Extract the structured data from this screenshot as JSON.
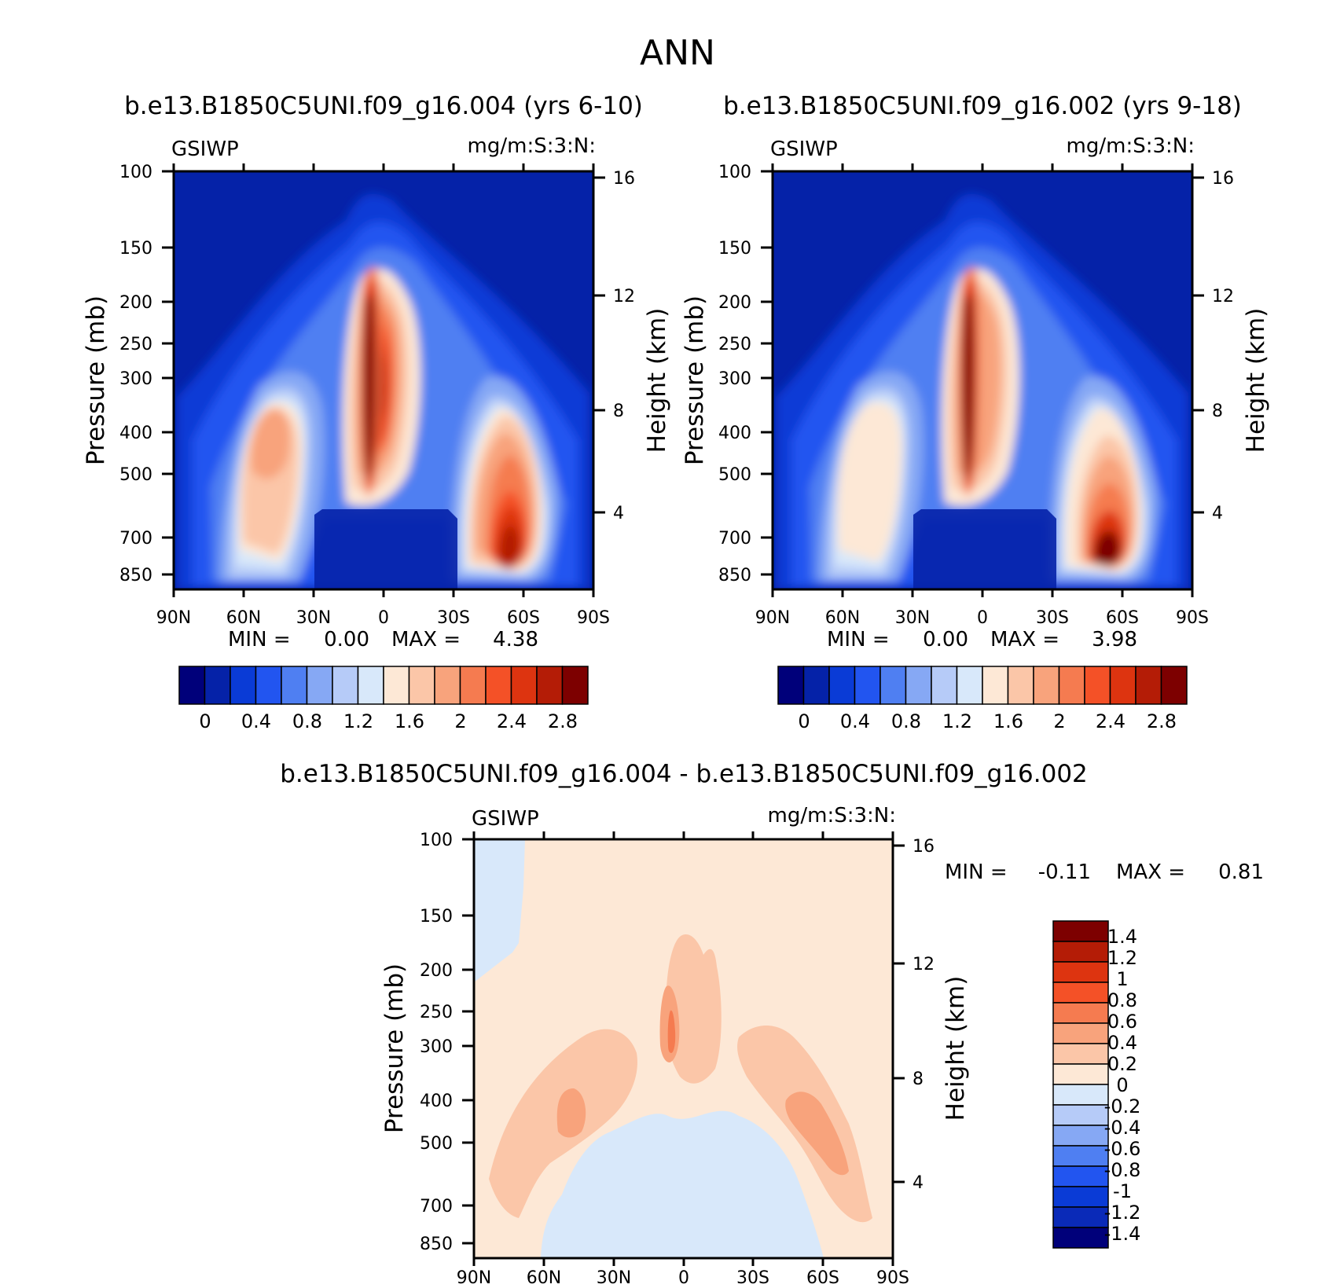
{
  "chart_data": {
    "type": "contour",
    "title": "ANN",
    "panels": [
      {
        "id": "p1",
        "subtitle": "b.e13.B1850C5UNI.f09_g16.004 (yrs 6-10)",
        "variable": "GSIWP",
        "units": "mg/m:S:3:N:",
        "xlabel": "",
        "ylabel": "Pressure (mb)",
        "ylabel_right": "Height (km)",
        "x_ticks": [
          "90N",
          "60N",
          "30N",
          "0",
          "30S",
          "60S",
          "90S"
        ],
        "y_ticks": [
          "100",
          "150",
          "200",
          "250",
          "300",
          "400",
          "500",
          "700",
          "850"
        ],
        "y_ticks_right": [
          "16",
          "12",
          "8",
          "4"
        ],
        "min_label": "MIN =",
        "min_value": "0.00",
        "max_label": "MAX =",
        "max_value": "4.38",
        "colorbar_labels": [
          "0",
          "0.4",
          "0.8",
          "1.2",
          "1.6",
          "2",
          "2.4",
          "2.8"
        ]
      },
      {
        "id": "p2",
        "subtitle": "b.e13.B1850C5UNI.f09_g16.002 (yrs 9-18)",
        "variable": "GSIWP",
        "units": "mg/m:S:3:N:",
        "xlabel": "",
        "ylabel": "Pressure (mb)",
        "ylabel_right": "Height (km)",
        "x_ticks": [
          "90N",
          "60N",
          "30N",
          "0",
          "30S",
          "60S",
          "90S"
        ],
        "y_ticks": [
          "100",
          "150",
          "200",
          "250",
          "300",
          "400",
          "500",
          "700",
          "850"
        ],
        "y_ticks_right": [
          "16",
          "12",
          "8",
          "4"
        ],
        "min_label": "MIN =",
        "min_value": "0.00",
        "max_label": "MAX =",
        "max_value": "3.98",
        "colorbar_labels": [
          "0",
          "0.4",
          "0.8",
          "1.2",
          "1.6",
          "2",
          "2.4",
          "2.8"
        ]
      },
      {
        "id": "p3",
        "subtitle": "b.e13.B1850C5UNI.f09_g16.004 - b.e13.B1850C5UNI.f09_g16.002",
        "variable": "GSIWP",
        "units": "mg/m:S:3:N:",
        "xlabel": "",
        "ylabel": "Pressure (mb)",
        "ylabel_right": "Height (km)",
        "x_ticks": [
          "90N",
          "60N",
          "30N",
          "0",
          "30S",
          "60S",
          "90S"
        ],
        "y_ticks": [
          "100",
          "150",
          "200",
          "250",
          "300",
          "400",
          "500",
          "700",
          "850"
        ],
        "y_ticks_right": [
          "16",
          "12",
          "8",
          "4"
        ],
        "min_label": "MIN =",
        "min_value": "-0.11",
        "max_label": "MAX =",
        "max_value": "0.81",
        "colorbar_labels": [
          "1.4",
          "1.2",
          "1",
          "0.8",
          "0.6",
          "0.4",
          "0.2",
          "0",
          "-0.2",
          "-0.4",
          "-0.6",
          "-0.8",
          "-1",
          "-1.2",
          "-1.4"
        ]
      }
    ],
    "scale_levels_abs": [
      0.2,
      0.4,
      0.6,
      0.8,
      1.0,
      1.2,
      1.4,
      1.6,
      1.8,
      2.0,
      2.2,
      2.4,
      2.6,
      2.8
    ],
    "scale_levels_diff": [
      -1.4,
      -1.2,
      -1.0,
      -0.8,
      -0.6,
      -0.4,
      -0.2,
      0,
      0.2,
      0.4,
      0.6,
      0.8,
      1.0,
      1.2,
      1.4
    ],
    "colors_abs": [
      "#00007a",
      "#0522a8",
      "#0a3bd6",
      "#2255f0",
      "#4f7ff2",
      "#86a8f4",
      "#b6cbf8",
      "#d8e8fa",
      "#fde8d6",
      "#fbc6a8",
      "#f8a37c",
      "#f57b50",
      "#f45127",
      "#dd3410",
      "#b41c06",
      "#7d0000"
    ],
    "colors_diff": [
      "#00007a",
      "#0a2ab8",
      "#0a3bd6",
      "#2255f0",
      "#4f7ff2",
      "#86a8f4",
      "#b6cbf8",
      "#d8e8fa",
      "#fde8d6",
      "#fbc6a8",
      "#f8a37c",
      "#f57b50",
      "#f45127",
      "#dd3410",
      "#b41c06",
      "#7d0000"
    ]
  }
}
